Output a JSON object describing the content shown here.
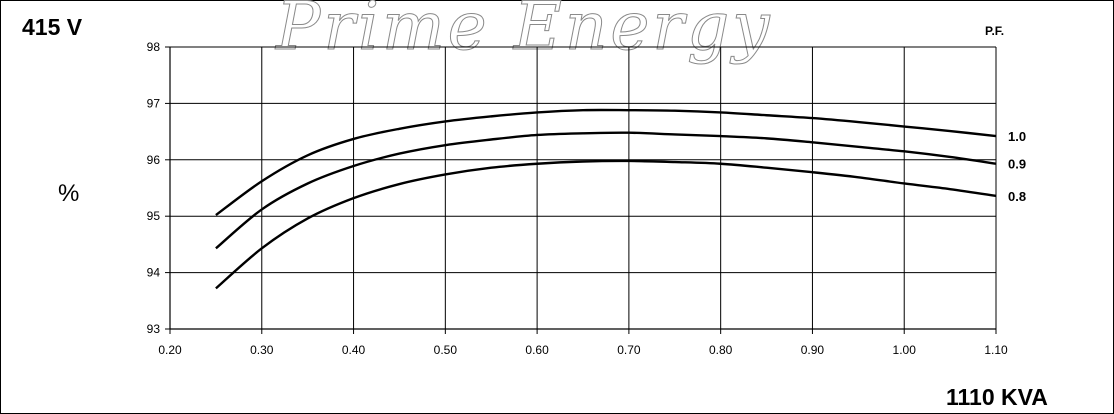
{
  "watermark": "Prime Energy",
  "header": {
    "voltage": "415 V",
    "pf_title": "P.F."
  },
  "chart_data": {
    "type": "line",
    "title": "",
    "xlabel": "1110 KVA",
    "ylabel": "%",
    "xlim": [
      0.2,
      1.1
    ],
    "ylim": [
      93,
      98
    ],
    "x_ticks": [
      "0.20",
      "0.30",
      "0.40",
      "0.50",
      "0.60",
      "0.70",
      "0.80",
      "0.90",
      "1.00",
      "1.10"
    ],
    "y_ticks": [
      "93",
      "94",
      "95",
      "96",
      "97",
      "98"
    ],
    "grid": true,
    "legend": "right",
    "x": [
      0.25,
      0.3,
      0.35,
      0.4,
      0.45,
      0.5,
      0.55,
      0.6,
      0.65,
      0.7,
      0.75,
      0.8,
      0.85,
      0.9,
      0.95,
      1.0,
      1.05,
      1.1
    ],
    "series": [
      {
        "name": "1.0",
        "values": [
          95.02,
          95.62,
          96.08,
          96.37,
          96.55,
          96.68,
          96.77,
          96.84,
          96.88,
          96.88,
          96.87,
          96.84,
          96.79,
          96.74,
          96.67,
          96.59,
          96.51,
          96.42
        ]
      },
      {
        "name": "0.9",
        "values": [
          94.43,
          95.12,
          95.58,
          95.89,
          96.11,
          96.26,
          96.36,
          96.44,
          96.47,
          96.48,
          96.45,
          96.42,
          96.38,
          96.31,
          96.23,
          96.15,
          96.05,
          95.93
        ]
      },
      {
        "name": "0.8",
        "values": [
          93.72,
          94.43,
          94.96,
          95.32,
          95.57,
          95.74,
          95.86,
          95.93,
          95.97,
          95.98,
          95.96,
          95.93,
          95.86,
          95.78,
          95.69,
          95.58,
          95.48,
          95.36
        ]
      }
    ]
  }
}
